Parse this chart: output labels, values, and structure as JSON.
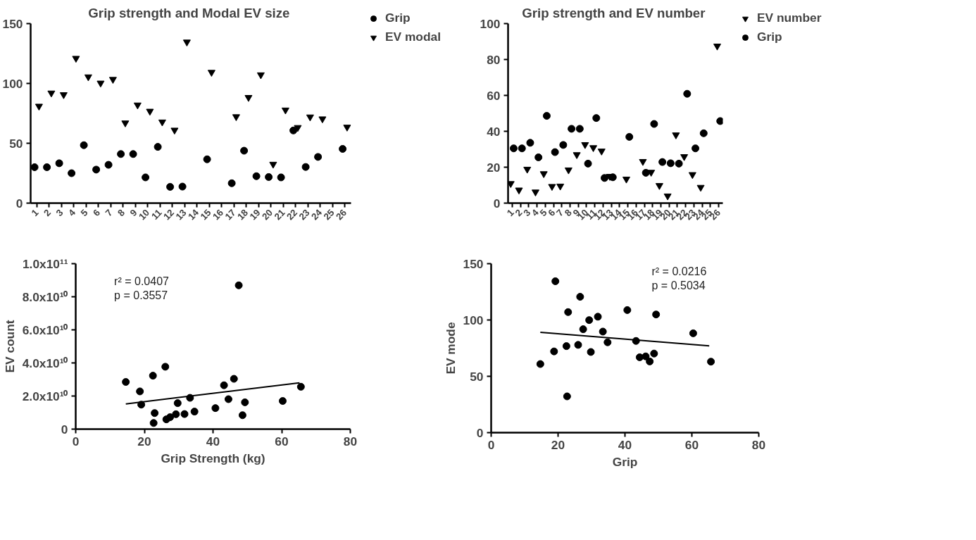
{
  "chart_data": [
    {
      "type": "scatter",
      "title": "Grip strength  and Modal EV size",
      "categories": [
        "1",
        "2",
        "3",
        "4",
        "5",
        "6",
        "7",
        "8",
        "9",
        "10",
        "11",
        "12",
        "13",
        "14",
        "15",
        "16",
        "17",
        "18",
        "19",
        "20",
        "21",
        "22",
        "23",
        "24",
        "25",
        "26"
      ],
      "ylim": [
        0,
        150
      ],
      "yticks": [
        0,
        50,
        100,
        150
      ],
      "grid": false,
      "legend": "top right",
      "series": [
        {
          "name": "Grip",
          "color": "#000000",
          "marker": "circle",
          "values": [
            30,
            30,
            33.3,
            25,
            48.4,
            28,
            32,
            41,
            41,
            21.5,
            47,
            13.6,
            13.8,
            null,
            36.6,
            null,
            16.6,
            43.8,
            22.5,
            21.8,
            21.5,
            60.7,
            30.2,
            38.6,
            null,
            45.3
          ]
        },
        {
          "name": "EV modal",
          "color": "#000000",
          "marker": "triangle",
          "values": [
            81,
            92,
            90.6,
            121,
            105.5,
            100.3,
            103.4,
            67,
            82,
            76.8,
            67.8,
            61,
            134.6,
            null,
            109.3,
            null,
            72.2,
            88.3,
            107.2,
            32.5,
            77.8,
            63.2,
            72,
            70.4,
            null,
            63.5
          ]
        }
      ]
    },
    {
      "type": "scatter",
      "title": "Grip strength  and EV number",
      "categories": [
        "1",
        "2",
        "3",
        "4",
        "5",
        "6",
        "7",
        "8",
        "9",
        "10",
        "11",
        "12",
        "13",
        "14",
        "15",
        "16",
        "17",
        "18",
        "19",
        "20",
        "21",
        "22",
        "23",
        "24",
        "25",
        "26"
      ],
      "ylim": [
        0,
        100
      ],
      "yticks": [
        0,
        20,
        40,
        60,
        80,
        100
      ],
      "grid": false,
      "legend": "top right",
      "series": [
        {
          "name": "EV number",
          "color": "#000000",
          "marker": "triangle",
          "values": [
            10.9,
            7.3,
            18.9,
            6.2,
            16.4,
            9.3,
            9.5,
            18.5,
            27,
            32.6,
            30.9,
            29,
            14.9,
            null,
            13.4,
            null,
            23.2,
            17.2,
            9.8,
            4,
            38,
            25.9,
            15.9,
            8.8,
            null,
            87.5
          ]
        },
        {
          "name": "Grip",
          "color": "#000000",
          "marker": "circle",
          "values": [
            30.5,
            30.5,
            33.6,
            25.5,
            48.6,
            28.4,
            32.4,
            41.4,
            41.4,
            22,
            47.4,
            14,
            14.4,
            null,
            36.9,
            null,
            16.9,
            44.1,
            22.9,
            22.2,
            22,
            60.9,
            30.5,
            38.9,
            null,
            45.7
          ]
        }
      ]
    },
    {
      "type": "scatter",
      "xlabel": "Grip Strength (kg)",
      "ylabel": "EV count",
      "xlim": [
        0,
        80
      ],
      "xticks": [
        0,
        20,
        40,
        60,
        80
      ],
      "ylim": [
        0,
        100000000000
      ],
      "yticks": [
        {
          "value": 0,
          "label": "0"
        },
        {
          "value": 20000000000,
          "label": "2.0x10¹⁰"
        },
        {
          "value": 40000000000,
          "label": "4.0x10¹⁰"
        },
        {
          "value": 60000000000,
          "label": "6.0x10¹⁰"
        },
        {
          "value": 80000000000,
          "label": "8.0x10¹⁰"
        },
        {
          "value": 100000000000,
          "label": "1.0x10¹¹"
        }
      ],
      "grid": false,
      "annotations": [
        "r² = 0.0407",
        "p = 0.3557"
      ],
      "series": [
        {
          "color": "#000000",
          "marker": "circle",
          "x": [
            14.6,
            18.7,
            19.1,
            22.5,
            23.0,
            22.7,
            26.1,
            26.4,
            27.5,
            29.2,
            29.7,
            31.7,
            33.3,
            34.6,
            40.7,
            43.2,
            44.5,
            46.1,
            47.5,
            48.6,
            49.3,
            60.3,
            65.6
          ],
          "values": [
            28500000000,
            22800000000,
            14800000000,
            32300000000,
            9700000000,
            3700000000,
            37700000000,
            5900000000,
            7200000000,
            9000000000,
            15700000000,
            9100000000,
            18900000000,
            10600000000,
            12700000000,
            26500000000,
            18100000000,
            30400000000,
            86900000000,
            8400000000,
            16200000000,
            17000000000,
            25600000000
          ]
        },
        {
          "type": "line",
          "color": "#000000",
          "x": [
            14.6,
            65.2
          ],
          "values": [
            15200000000,
            28000000000
          ]
        }
      ]
    },
    {
      "type": "scatter",
      "xlabel": "Grip",
      "ylabel": "EV mode",
      "xlim": [
        0,
        80
      ],
      "xticks": [
        0,
        20,
        40,
        60,
        80
      ],
      "ylim": [
        0,
        150
      ],
      "yticks": [
        0,
        50,
        100,
        150
      ],
      "grid": false,
      "annotations": [
        "r² = 0.0216",
        "p = 0.5034"
      ],
      "series": [
        {
          "color": "#000000",
          "marker": "circle",
          "x": [
            14.7,
            18.8,
            19.2,
            22.5,
            22.7,
            23.0,
            26.0,
            26.6,
            27.5,
            29.3,
            29.8,
            31.9,
            33.4,
            34.8,
            40.7,
            43.3,
            44.4,
            46.2,
            47.4,
            48.7,
            49.3,
            60.4,
            65.7
          ],
          "values": [
            60.9,
            72.1,
            134.4,
            76.8,
            32.2,
            107.0,
            77.9,
            120.6,
            91.8,
            99.9,
            71.6,
            102.9,
            89.7,
            80.2,
            108.8,
            81.4,
            66.9,
            67.7,
            63.2,
            70.2,
            104.9,
            88.2,
            63.0
          ]
        },
        {
          "type": "line",
          "color": "#000000",
          "x": [
            14.7,
            65.2
          ],
          "values": [
            89.1,
            77.0
          ]
        }
      ]
    }
  ]
}
